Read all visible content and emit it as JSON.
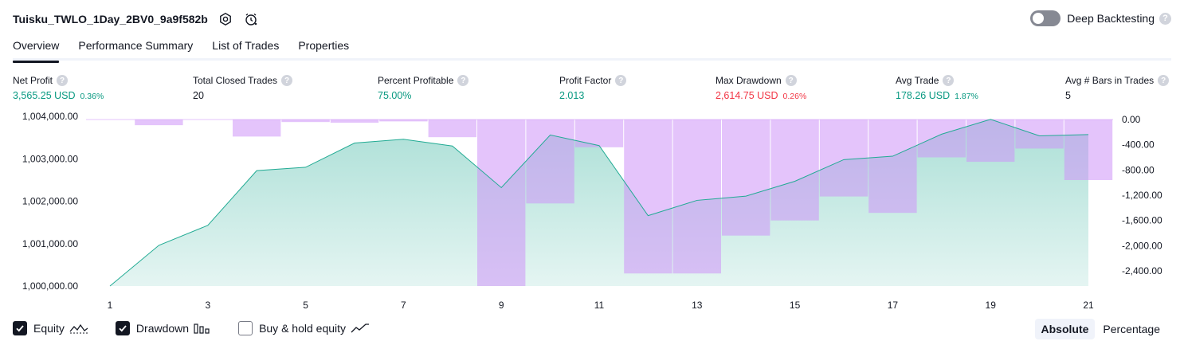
{
  "header": {
    "title": "Tuisku_TWLO_1Day_2BV0_9a9f582b",
    "icons": [
      "settings-icon",
      "alert-clock-icon"
    ]
  },
  "deep_backtesting": {
    "label": "Deep Backtesting",
    "enabled": false
  },
  "tabs": [
    {
      "label": "Overview",
      "active": true
    },
    {
      "label": "Performance Summary",
      "active": false
    },
    {
      "label": "List of Trades",
      "active": false
    },
    {
      "label": "Properties",
      "active": false
    }
  ],
  "metrics": [
    {
      "label": "Net Profit",
      "value": "3,565.25 USD",
      "pct": "0.36%",
      "color": "#089981"
    },
    {
      "label": "Total Closed Trades",
      "value": "20",
      "pct": "",
      "color": "#131722"
    },
    {
      "label": "Percent Profitable",
      "value": "75.00%",
      "pct": "",
      "color": "#089981"
    },
    {
      "label": "Profit Factor",
      "value": "2.013",
      "pct": "",
      "color": "#089981"
    },
    {
      "label": "Max Drawdown",
      "value": "2,614.75 USD",
      "pct": "0.26%",
      "color": "#f23645"
    },
    {
      "label": "Avg Trade",
      "value": "178.26 USD",
      "pct": "1.87%",
      "color": "#089981"
    },
    {
      "label": "Avg # Bars in Trades",
      "value": "5",
      "pct": "",
      "color": "#131722"
    }
  ],
  "chart_data": {
    "type": "area",
    "x": [
      1,
      2,
      3,
      4,
      5,
      6,
      7,
      8,
      9,
      10,
      11,
      12,
      13,
      14,
      15,
      16,
      17,
      18,
      19,
      20,
      21
    ],
    "x_ticks": [
      "1",
      "3",
      "5",
      "7",
      "9",
      "11",
      "13",
      "15",
      "17",
      "19",
      "21"
    ],
    "series": [
      {
        "name": "Equity",
        "axis": "left",
        "values": [
          1000000,
          1000960,
          1001430,
          1002720,
          1002800,
          1003370,
          1003460,
          1003300,
          1002320,
          1003560,
          1003310,
          1001660,
          1002020,
          1002120,
          1002470,
          1002980,
          1003060,
          1003580,
          1003930,
          1003540,
          1003570
        ]
      },
      {
        "name": "Drawdown",
        "axis": "right",
        "values": [
          0,
          -90,
          0,
          -270,
          -40,
          -50,
          -30,
          -280,
          -2640,
          -1330,
          -440,
          -2440,
          -2440,
          -1840,
          -1600,
          -1220,
          -1480,
          -600,
          -670,
          -460,
          -960
        ]
      }
    ],
    "left_ticks": [
      "1,000,000.00",
      "1,001,000.00",
      "1,002,000.00",
      "1,003,000.00",
      "1,004,000.00"
    ],
    "left_ylim": [
      1000000,
      1004000
    ],
    "right_ticks": [
      "0.00",
      "-400.00",
      "-800.00",
      "-1,200.00",
      "-1,600.00",
      "-2,000.00",
      "-2,400.00"
    ],
    "right_ylim": [
      -2640,
      0
    ],
    "equity_color": "#22ab94",
    "drawdown_color": "#ce93f7"
  },
  "legend": [
    {
      "label": "Equity",
      "checked": true
    },
    {
      "label": "Drawdown",
      "checked": true
    },
    {
      "label": "Buy & hold equity",
      "checked": false
    }
  ],
  "modes": [
    {
      "label": "Absolute",
      "active": true
    },
    {
      "label": "Percentage",
      "active": false
    }
  ]
}
